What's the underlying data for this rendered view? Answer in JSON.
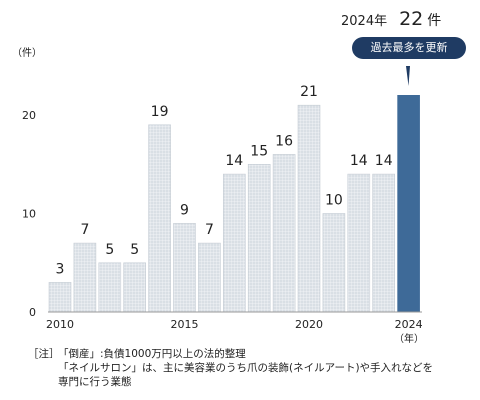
{
  "chart_data": {
    "type": "bar",
    "x": [
      2010,
      2011,
      2012,
      2013,
      2014,
      2015,
      2016,
      2017,
      2018,
      2019,
      2020,
      2021,
      2022,
      2023,
      2024
    ],
    "values": [
      3,
      7,
      5,
      5,
      19,
      9,
      7,
      14,
      15,
      16,
      21,
      10,
      14,
      14,
      22
    ],
    "x_tick_labels": [
      "2010",
      "2015",
      "2020",
      "2024"
    ],
    "y_ticks": [
      0,
      10,
      20
    ],
    "ylim": [
      0,
      24
    ],
    "ylabel": "（件）",
    "xlabel_unit": "（年）",
    "highlight": {
      "index": 14,
      "year_label": "2024年",
      "value_label": "22",
      "unit_label": "件",
      "badge": "過去最多を更新"
    },
    "colors": {
      "bar": "#d9dfe5",
      "highlight": "#3e6a98",
      "badge": "#1f3b63"
    }
  },
  "notes": {
    "prefix": "［注］",
    "line1": "「倒産」:負債1000万円以上の法的整理",
    "line2": "「ネイルサロン」は、主に美容業のうち爪の装飾(ネイルアート)や手入れなどを",
    "line3": "専門に行う業態"
  }
}
